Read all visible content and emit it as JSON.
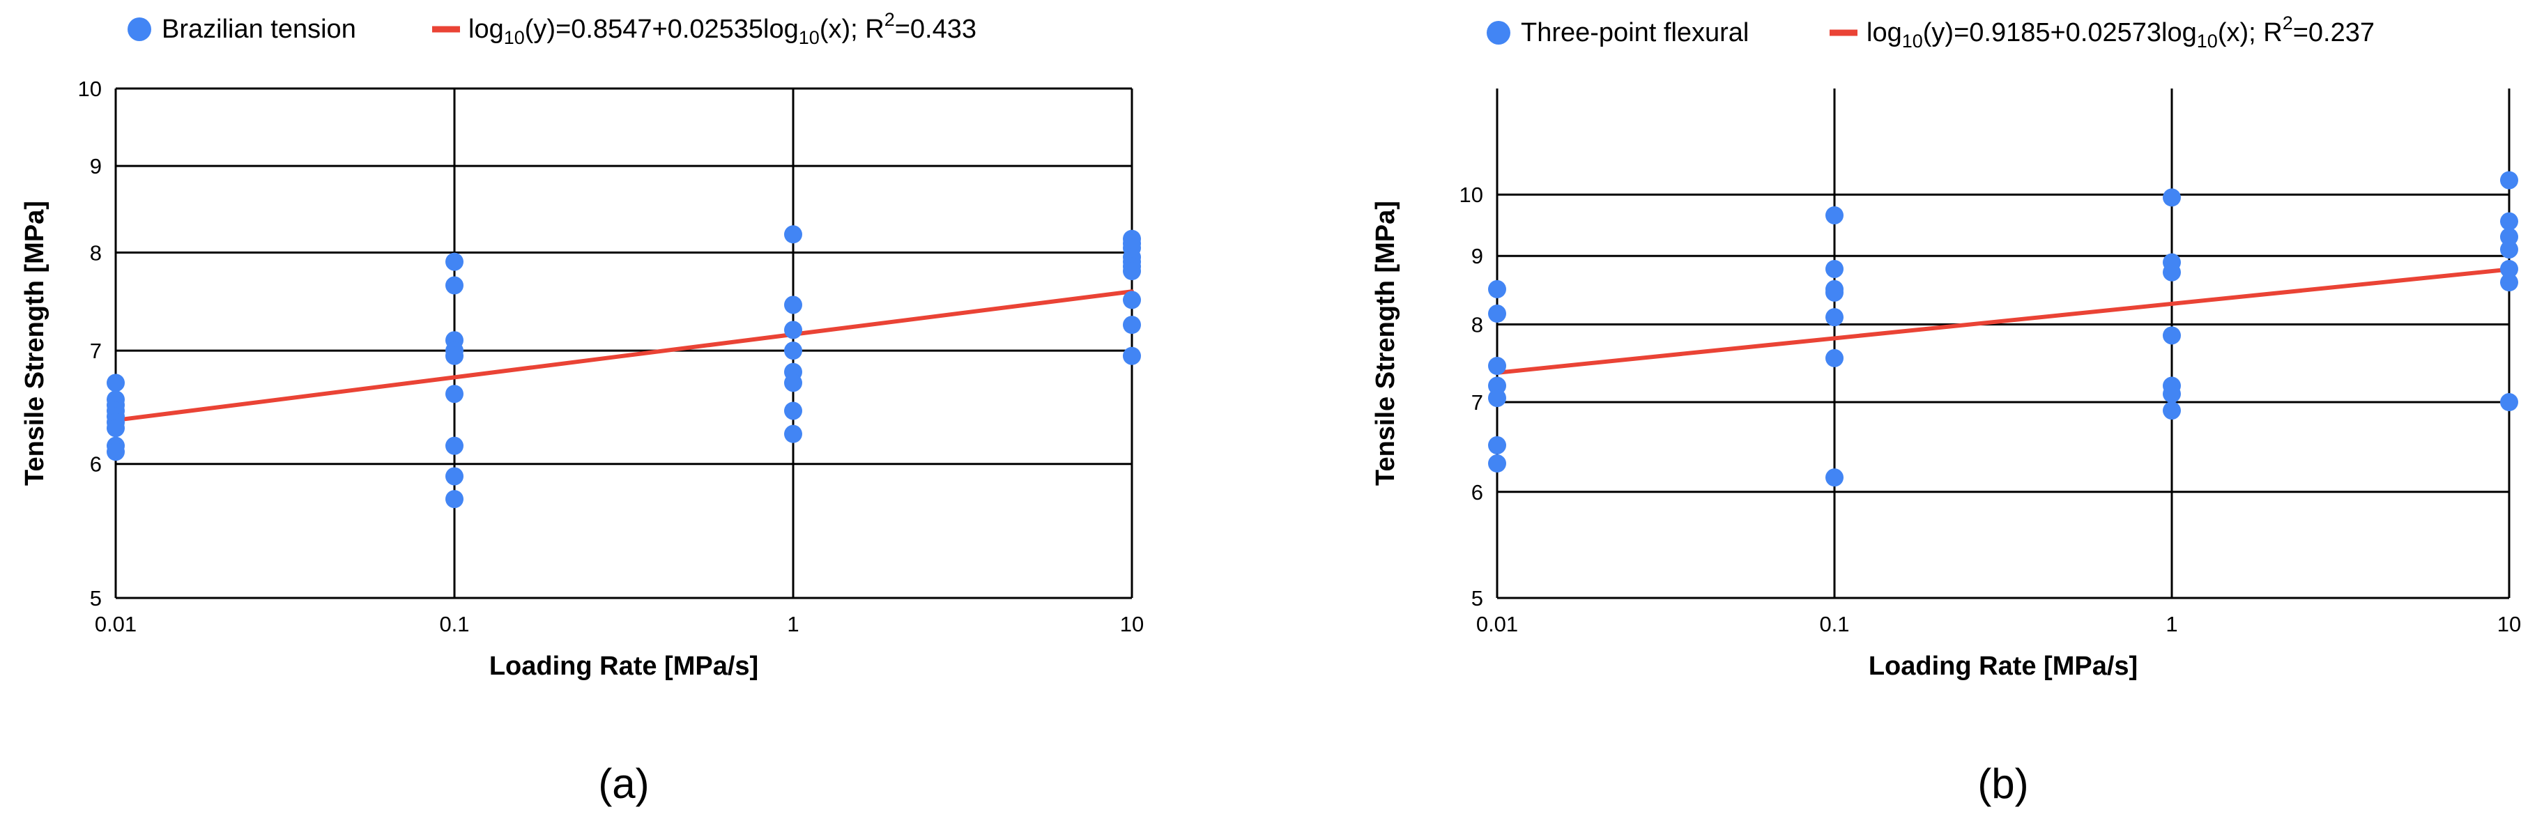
{
  "colors": {
    "points": "#4285f4",
    "fit": "#ea4335",
    "grid": "#000000",
    "text": "#000000"
  },
  "chart_data": [
    {
      "type": "scatter",
      "panel_label": "(a)",
      "xlabel": "Loading Rate [MPa/s]",
      "ylabel": "Tensile Strength [MPa]",
      "x_scale": "log",
      "y_scale": "log",
      "xlim": [
        0.01,
        10
      ],
      "ylim": [
        5,
        10
      ],
      "x_ticks": [
        0.01,
        0.1,
        1,
        10
      ],
      "x_tick_labels": [
        "0.01",
        "0.1",
        "1",
        "10"
      ],
      "y_ticks": [
        5,
        6,
        7,
        8,
        9,
        10
      ],
      "y_tick_labels": [
        "5",
        "6",
        "7",
        "8",
        "9",
        "10"
      ],
      "grid": true,
      "legend_position": "top",
      "legend": {
        "points_label": "Brazilian tension",
        "fit_prefix": "log",
        "fit_sub1": "10",
        "fit_mid": "(y)=0.8547+0.02535log",
        "fit_sub2": "10",
        "fit_tail": "(x); R",
        "fit_sup": "2",
        "fit_end": "=0.433"
      },
      "fit": {
        "intercept": 0.8547,
        "slope": 0.02535
      },
      "series": [
        {
          "name": "Brazilian tension",
          "points": [
            {
              "x": 0.01,
              "y": 6.7
            },
            {
              "x": 0.01,
              "y": 6.55
            },
            {
              "x": 0.01,
              "y": 6.5
            },
            {
              "x": 0.01,
              "y": 6.45
            },
            {
              "x": 0.01,
              "y": 6.4
            },
            {
              "x": 0.01,
              "y": 6.35
            },
            {
              "x": 0.01,
              "y": 6.3
            },
            {
              "x": 0.01,
              "y": 6.15
            },
            {
              "x": 0.01,
              "y": 6.1
            },
            {
              "x": 0.1,
              "y": 7.9
            },
            {
              "x": 0.1,
              "y": 7.65
            },
            {
              "x": 0.1,
              "y": 7.1
            },
            {
              "x": 0.1,
              "y": 7.0
            },
            {
              "x": 0.1,
              "y": 6.95
            },
            {
              "x": 0.1,
              "y": 6.6
            },
            {
              "x": 0.1,
              "y": 6.15
            },
            {
              "x": 0.1,
              "y": 5.9
            },
            {
              "x": 0.1,
              "y": 5.72
            },
            {
              "x": 1,
              "y": 8.2
            },
            {
              "x": 1,
              "y": 7.45
            },
            {
              "x": 1,
              "y": 7.2
            },
            {
              "x": 1,
              "y": 7.0
            },
            {
              "x": 1,
              "y": 6.8
            },
            {
              "x": 1,
              "y": 6.7
            },
            {
              "x": 1,
              "y": 6.45
            },
            {
              "x": 1,
              "y": 6.25
            },
            {
              "x": 10,
              "y": 8.15
            },
            {
              "x": 10,
              "y": 8.1
            },
            {
              "x": 10,
              "y": 8.05
            },
            {
              "x": 10,
              "y": 7.95
            },
            {
              "x": 10,
              "y": 7.9
            },
            {
              "x": 10,
              "y": 7.85
            },
            {
              "x": 10,
              "y": 7.8
            },
            {
              "x": 10,
              "y": 7.5
            },
            {
              "x": 10,
              "y": 7.25
            },
            {
              "x": 10,
              "y": 6.95
            }
          ]
        }
      ]
    },
    {
      "type": "scatter",
      "panel_label": "(b)",
      "xlabel": "Loading Rate [MPa/s]",
      "ylabel": "Tensile Strength [MPa]",
      "x_scale": "log",
      "y_scale": "log",
      "xlim": [
        0.01,
        10
      ],
      "ylim": [
        5,
        12
      ],
      "x_ticks": [
        0.01,
        0.1,
        1,
        10
      ],
      "x_tick_labels": [
        "0.01",
        "0.1",
        "1",
        "10"
      ],
      "y_ticks": [
        5,
        6,
        7,
        8,
        9,
        10
      ],
      "y_tick_labels": [
        "5",
        "6",
        "7",
        "8",
        "9",
        "10"
      ],
      "grid": true,
      "legend_position": "top",
      "legend": {
        "points_label": "Three-point flexural",
        "fit_prefix": "log",
        "fit_sub1": "10",
        "fit_mid": "(y)=0.9185+0.02573log",
        "fit_sub2": "10",
        "fit_tail": "(x); R",
        "fit_sup": "2",
        "fit_end": "=0.237"
      },
      "fit": {
        "intercept": 0.9185,
        "slope": 0.02573
      },
      "series": [
        {
          "name": "Three-point flexural",
          "points": [
            {
              "x": 0.01,
              "y": 8.5
            },
            {
              "x": 0.01,
              "y": 8.15
            },
            {
              "x": 0.01,
              "y": 7.45
            },
            {
              "x": 0.01,
              "y": 7.2
            },
            {
              "x": 0.01,
              "y": 7.05
            },
            {
              "x": 0.01,
              "y": 6.5
            },
            {
              "x": 0.01,
              "y": 6.3
            },
            {
              "x": 0.1,
              "y": 9.65
            },
            {
              "x": 0.1,
              "y": 8.8
            },
            {
              "x": 0.1,
              "y": 8.5
            },
            {
              "x": 0.1,
              "y": 8.45
            },
            {
              "x": 0.1,
              "y": 8.1
            },
            {
              "x": 0.1,
              "y": 7.55
            },
            {
              "x": 0.1,
              "y": 6.15
            },
            {
              "x": 1,
              "y": 9.95
            },
            {
              "x": 1,
              "y": 8.9
            },
            {
              "x": 1,
              "y": 8.75
            },
            {
              "x": 1,
              "y": 7.85
            },
            {
              "x": 1,
              "y": 7.2
            },
            {
              "x": 1,
              "y": 7.1
            },
            {
              "x": 1,
              "y": 6.9
            },
            {
              "x": 10,
              "y": 10.25
            },
            {
              "x": 10,
              "y": 9.55
            },
            {
              "x": 10,
              "y": 9.3
            },
            {
              "x": 10,
              "y": 9.1
            },
            {
              "x": 10,
              "y": 8.8
            },
            {
              "x": 10,
              "y": 8.6
            },
            {
              "x": 10,
              "y": 7.0
            }
          ]
        }
      ]
    }
  ]
}
